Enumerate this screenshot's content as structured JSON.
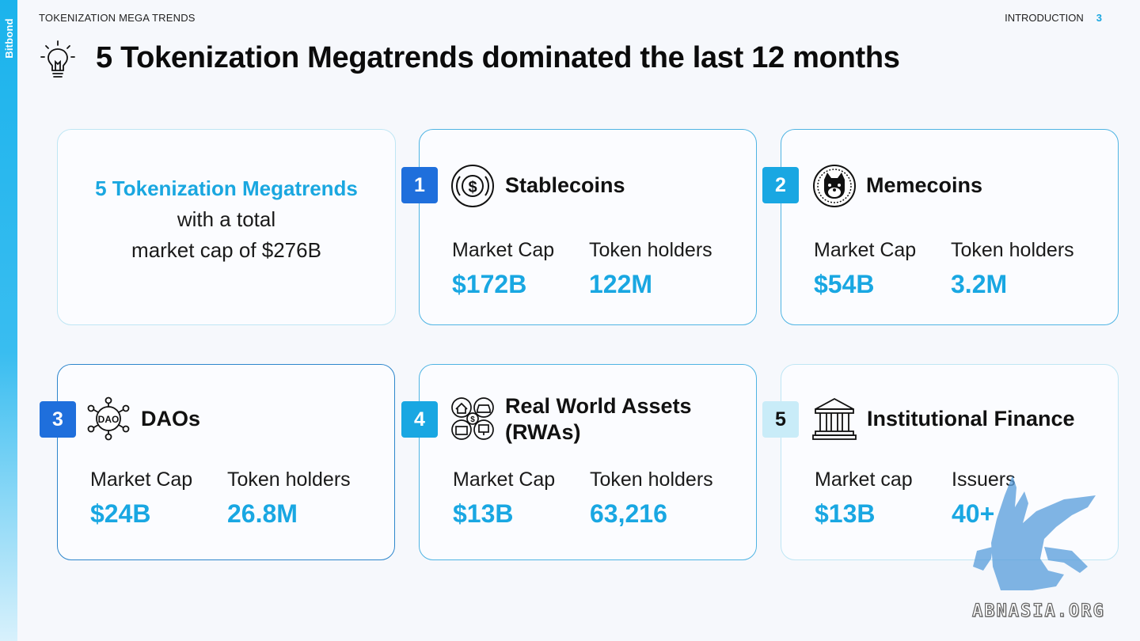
{
  "brand": "Bitbond",
  "header": {
    "section": "TOKENIZATION MEGA TRENDS",
    "chapter": "INTRODUCTION",
    "page": "3"
  },
  "title": "5 Tokenization Megatrends dominated the last 12 months",
  "intro": {
    "highlight": "5 Tokenization Megatrends",
    "line2": "with a total",
    "line3": "market cap of $276B"
  },
  "cards": [
    {
      "num": "1",
      "icon": "dollar-coin-icon",
      "title": "Stablecoins",
      "label1": "Market Cap",
      "value1": "$172B",
      "label2": "Token holders",
      "value2": "122M"
    },
    {
      "num": "2",
      "icon": "shiba-dog-coin-icon",
      "title": "Memecoins",
      "label1": "Market Cap",
      "value1": "$54B",
      "label2": "Token holders",
      "value2": "3.2M"
    },
    {
      "num": "3",
      "icon": "dao-network-icon",
      "icon_text": "DAO",
      "title": "DAOs",
      "label1": "Market Cap",
      "value1": "$24B",
      "label2": "Token holders",
      "value2": "26.8M"
    },
    {
      "num": "4",
      "icon": "real-world-assets-icon",
      "title_line1": "Real World Assets",
      "title_line2": "(RWAs)",
      "label1": "Market Cap",
      "value1": "$13B",
      "label2": "Token holders",
      "value2": "63,216"
    },
    {
      "num": "5",
      "icon": "bank-building-icon",
      "title": "Institutional Finance",
      "label1": "Market cap",
      "value1": "$13B",
      "label2": "Issuers",
      "value2": "40+"
    }
  ],
  "watermark": "ABNASIA.ORG",
  "colors": {
    "accent": "#19a7e2",
    "badge_dark": "#1f6fdc",
    "badge_mid": "#19a7e2",
    "badge_light": "#c9ecf8",
    "badge_light_text": "#111111",
    "sidebar": "#1bb3ec"
  }
}
